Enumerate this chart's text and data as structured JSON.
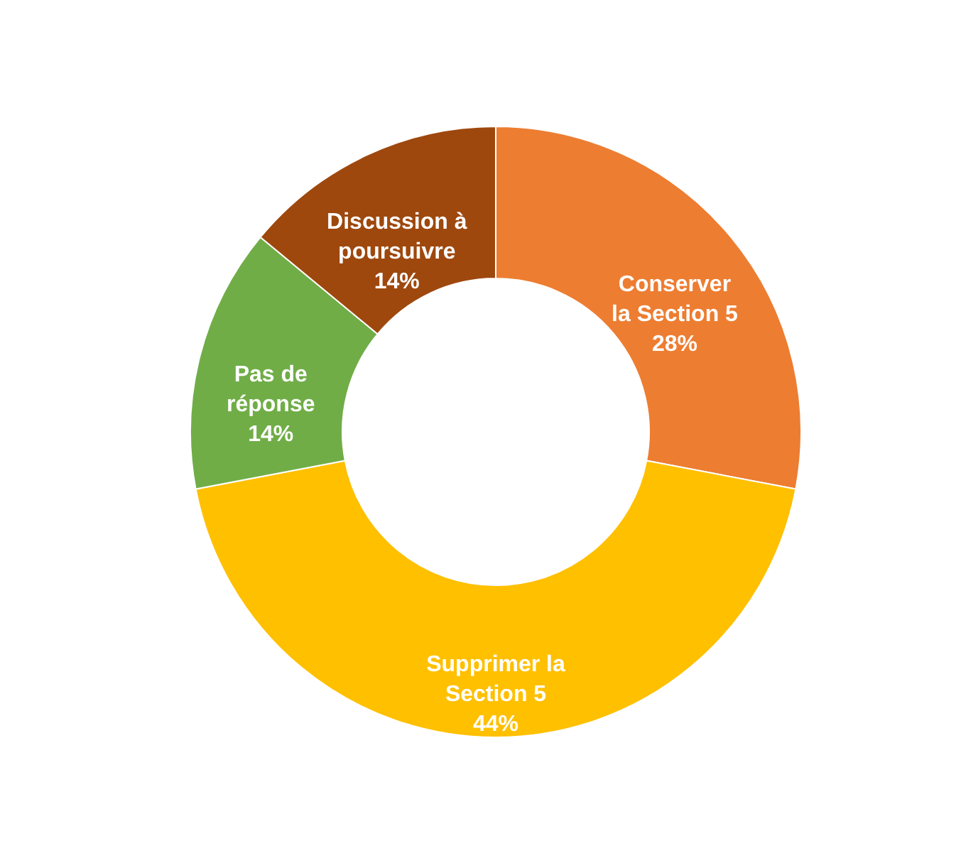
{
  "chart_data": {
    "type": "donut",
    "categories": [
      "Conserver\nla Section 5",
      "Supprimer la\nSection 5",
      "Pas de\nréponse",
      "Discussion à\npoursuivre"
    ],
    "values": [
      28,
      44,
      14,
      14
    ],
    "value_labels": [
      "28%",
      "44%",
      "14%",
      "14%"
    ],
    "colors": [
      "#ed7d31",
      "#ffc000",
      "#70ad47",
      "#9e480e"
    ]
  }
}
